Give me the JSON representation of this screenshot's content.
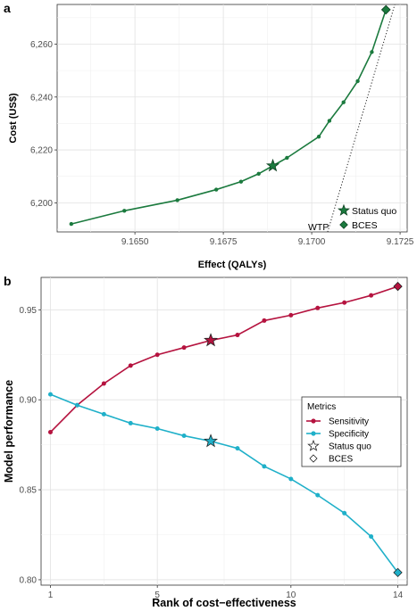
{
  "chart_data": [
    {
      "panel": "a",
      "type": "line",
      "xlabel": "Effect (QALYs)",
      "ylabel": "Cost (US$)",
      "xlim": [
        9.1628,
        9.1727
      ],
      "ylim": [
        6189,
        6275
      ],
      "x_ticks": [
        9.165,
        9.1675,
        9.17,
        9.1725
      ],
      "x_tick_labels": [
        "9.1650",
        "9.1675",
        "9.1700",
        "9.1725"
      ],
      "y_ticks": [
        6200,
        6220,
        6240,
        6260
      ],
      "y_tick_labels": [
        "6,200",
        "6,220",
        "6,240",
        "6,260"
      ],
      "grid": true,
      "series": [
        {
          "x": [
            9.1632,
            9.1647,
            9.1662,
            9.1673,
            9.168,
            9.1685,
            9.1689,
            9.1693,
            9.1702,
            9.1705,
            9.1709,
            9.1713,
            9.1717,
            9.1721
          ],
          "y": [
            6192,
            6197,
            6201,
            6205,
            6208,
            6211,
            6214,
            6217,
            6225,
            6231,
            6238,
            6246,
            6257,
            6273
          ]
        }
      ],
      "status_quo": {
        "x": 9.1689,
        "y": 6214
      },
      "bces": {
        "x": 9.1721,
        "y": 6273
      },
      "wtp_line": {
        "label": "WTP",
        "x0": 9.17045,
        "y0": 6189,
        "x1": 9.17235,
        "y1": 6275
      },
      "legend": {
        "position": "bottom-right",
        "entries": [
          "Status quo",
          "BCES"
        ]
      },
      "colors": {
        "line": "#1b7a3e",
        "marker": "#1b7a3e"
      }
    },
    {
      "panel": "b",
      "type": "line",
      "xlabel": "Rank of cost−effectiveness",
      "ylabel": "Model performance",
      "xlim": [
        0.65,
        14.35
      ],
      "ylim": [
        0.797,
        0.968
      ],
      "x_ticks": [
        1,
        5,
        10,
        14
      ],
      "x_tick_labels": [
        "1",
        "5",
        "10",
        "14"
      ],
      "y_ticks": [
        0.8,
        0.85,
        0.9,
        0.95
      ],
      "y_tick_labels": [
        "0.80",
        "0.85",
        "0.90",
        "0.95"
      ],
      "grid": true,
      "x": [
        1,
        2,
        3,
        4,
        5,
        6,
        7,
        8,
        9,
        10,
        11,
        12,
        13,
        14
      ],
      "series": [
        {
          "name": "Sensitivity",
          "color": "#b5133f",
          "values": [
            0.882,
            0.897,
            0.909,
            0.919,
            0.925,
            0.929,
            0.933,
            0.936,
            0.944,
            0.947,
            0.951,
            0.954,
            0.958,
            0.963
          ]
        },
        {
          "name": "Specificity",
          "color": "#1fb0c9",
          "values": [
            0.903,
            0.897,
            0.892,
            0.887,
            0.884,
            0.88,
            0.877,
            0.873,
            0.863,
            0.856,
            0.847,
            0.837,
            0.824,
            0.804
          ]
        }
      ],
      "status_quo_rank": 7,
      "bces_rank": 14,
      "legend": {
        "title": "Metrics",
        "position": "right",
        "entries": [
          "Sensitivity",
          "Specificity",
          "Status quo",
          "BCES"
        ]
      }
    }
  ]
}
